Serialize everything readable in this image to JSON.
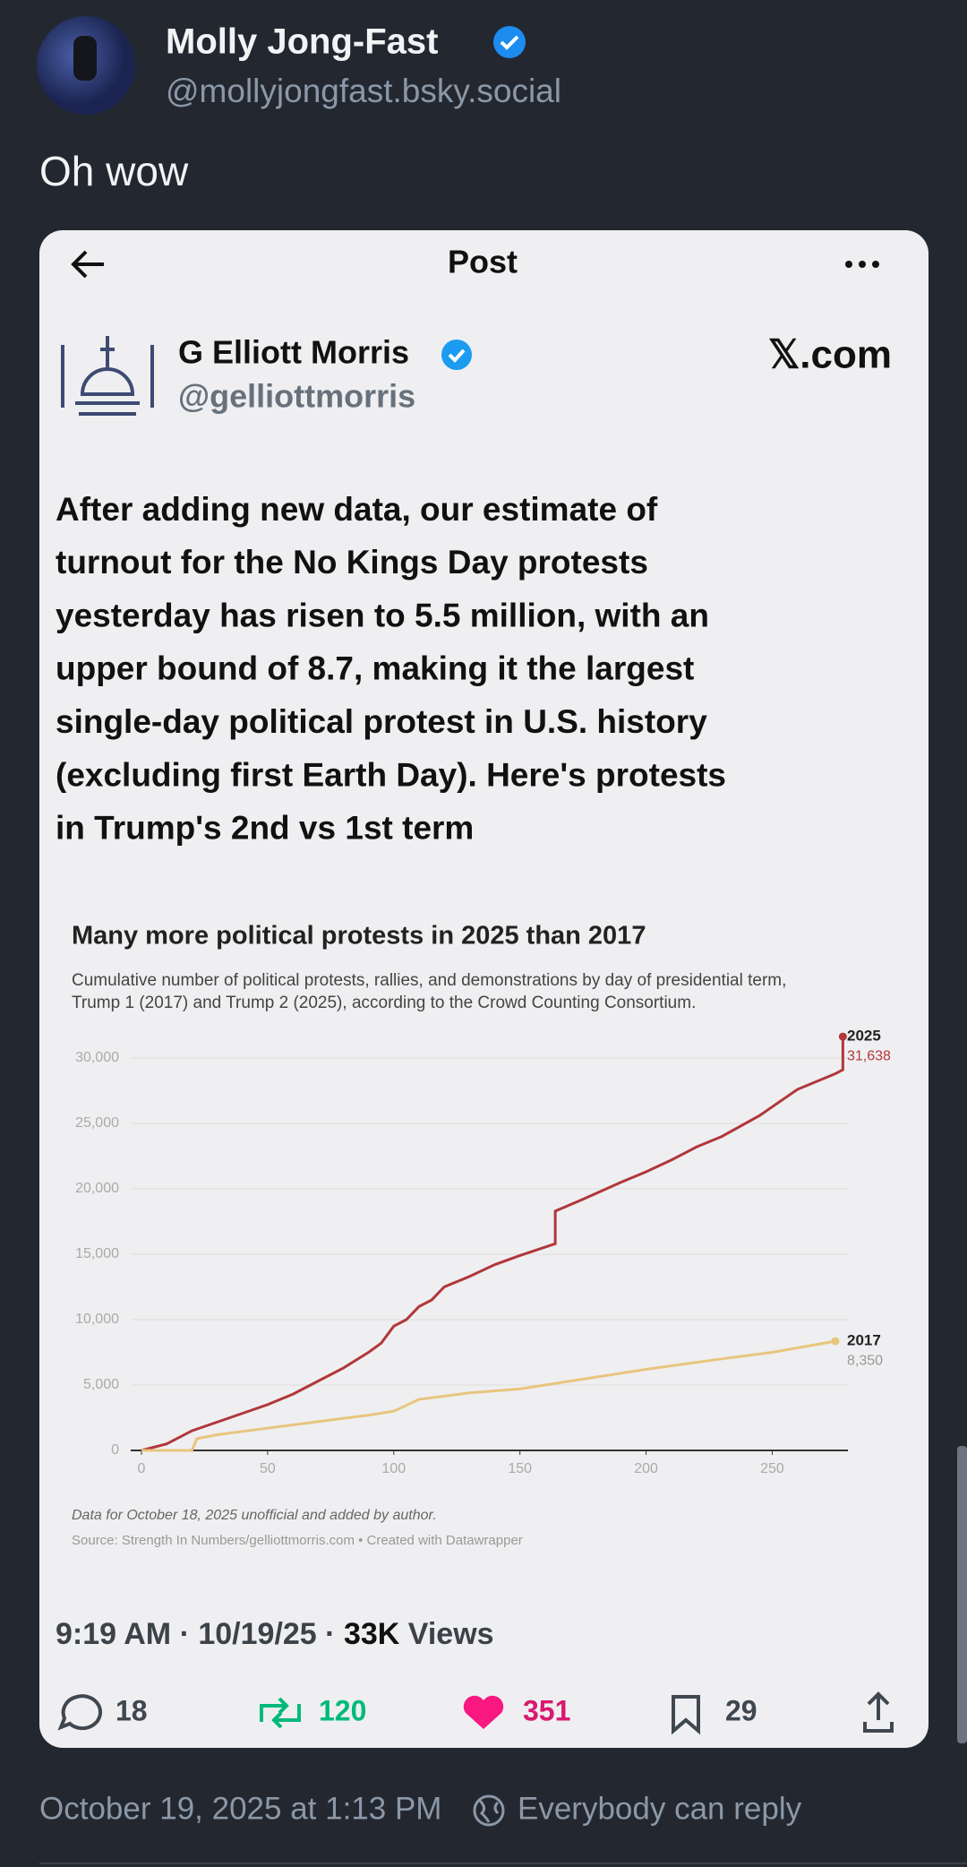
{
  "post": {
    "author": "Molly Jong-Fast",
    "handle": "@mollyjongfast.bsky.social",
    "text": "Oh wow",
    "footer": {
      "timestamp": "October 19, 2025 at 1:13 PM",
      "reply_setting": "Everybody can reply"
    }
  },
  "embed": {
    "header": {
      "title": "Post"
    },
    "author": "G Elliott Morris",
    "handle": "@gelliottmorris",
    "source": "𝕏.com",
    "text_lines": [
      "After adding new data, our estimate of",
      "turnout for the No Kings Day protests",
      "yesterday has risen to 5.5 million, with an",
      "upper bound of 8.7, making it the largest",
      "single-day political protest in U.S. history",
      "(excluding first Earth Day). Here's protests",
      "in Trump's 2nd vs 1st term"
    ],
    "chart": {
      "type": "line",
      "title": "Many more political protests in 2025 than 2017",
      "subtitle_lines": [
        "Cumulative number of political protests, rallies, and demonstrations by day of presidential term,",
        "Trump 1 (2017) and Trump 2 (2025), according to the Crowd Counting Consortium."
      ],
      "notes": [
        "Data for October 18, 2025 unofficial and added by author.",
        "Source: Strength In Numbers/gelliottmorris.com • Created with Datawrapper"
      ],
      "xlim": [
        0,
        280
      ],
      "xticks": [
        0,
        50,
        100,
        150,
        200,
        250
      ],
      "ylim": [
        0,
        30000
      ],
      "yticks": [
        0,
        {
          "value": 5000,
          "label": "5,000"
        },
        {
          "value": 10000,
          "label": "10,000"
        },
        {
          "value": 15000,
          "label": "15,000"
        },
        {
          "value": 20000,
          "label": "20,000"
        },
        {
          "value": 25000,
          "label": "25,000"
        },
        {
          "value": 30000,
          "label": "30,000"
        }
      ],
      "grid": true,
      "series": [
        {
          "name": "2025",
          "color": "#b1373b",
          "value_label": "31,638",
          "x": [
            0,
            10,
            20,
            35,
            50,
            60,
            70,
            80,
            90,
            95,
            100,
            105,
            110,
            115,
            120,
            130,
            140,
            150,
            164,
            164,
            175,
            190,
            200,
            210,
            220,
            230,
            245,
            260,
            275,
            278,
            278
          ],
          "values": [
            0,
            500,
            1500,
            2500,
            3500,
            4300,
            5300,
            6300,
            7500,
            8200,
            9500,
            10000,
            11000,
            11500,
            12500,
            13300,
            14200,
            14900,
            15800,
            18300,
            19200,
            20500,
            21300,
            22200,
            23200,
            24000,
            25600,
            27600,
            28800,
            29100,
            31638
          ]
        },
        {
          "name": "2017",
          "color": "#e8c57e",
          "value_label": "8,350",
          "x": [
            0,
            20,
            22,
            30,
            50,
            70,
            90,
            100,
            110,
            130,
            150,
            170,
            200,
            230,
            250,
            275
          ],
          "values": [
            0,
            0,
            900,
            1200,
            1700,
            2200,
            2700,
            3000,
            3900,
            4400,
            4700,
            5300,
            6200,
            7000,
            7500,
            8350
          ]
        }
      ]
    },
    "meta": {
      "time": "9:19 AM",
      "separator": "·",
      "date": "10/19/25",
      "views_count": "33K",
      "views_label": "Views"
    },
    "stats": {
      "replies": "18",
      "reposts": "120",
      "likes": "351",
      "bookmarks": "29"
    }
  }
}
